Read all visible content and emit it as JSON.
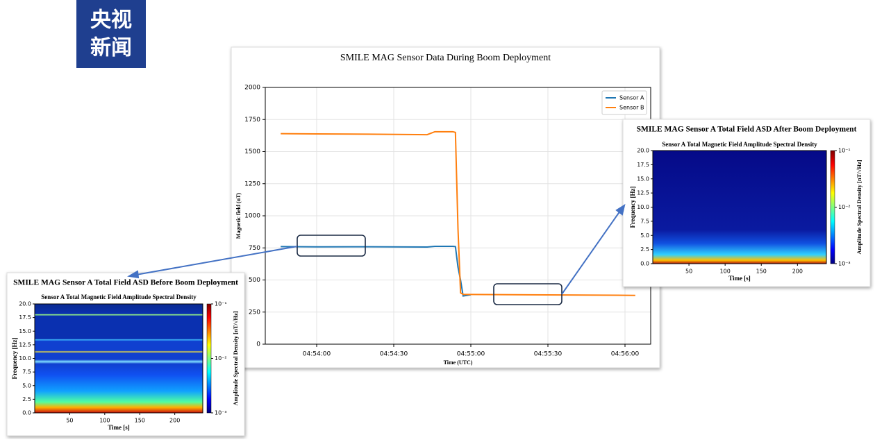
{
  "logo": {
    "lines": [
      "央视",
      "新闻"
    ]
  },
  "chart_data": [
    {
      "type": "line",
      "title": "SMILE MAG Sensor Data During Boom Deployment",
      "xlabel": "Time (UTC)",
      "ylabel": "Magnetic field (nT)",
      "x": [
        "04:53:46",
        "04:54:00",
        "04:54:20",
        "04:54:43",
        "04:54:46",
        "04:54:53",
        "04:54:54",
        "04:54:55",
        "04:54:56",
        "04:54:57",
        "04:55:00",
        "04:55:30",
        "04:56:04"
      ],
      "series": [
        {
          "name": "Sensor A",
          "color": "#1f77b4",
          "values": [
            760,
            758,
            759,
            757,
            762,
            762,
            760,
            600,
            500,
            375,
            385,
            null,
            null
          ]
        },
        {
          "name": "Sensor B",
          "color": "#ff7f0e",
          "values": [
            1640,
            1638,
            1636,
            1632,
            1655,
            1655,
            1650,
            900,
            400,
            388,
            387,
            384,
            380
          ]
        }
      ],
      "xlim": [
        "04:53:40",
        "04:56:10"
      ],
      "xticks": [
        "04:54:00",
        "04:54:30",
        "04:55:00",
        "04:55:30",
        "04:56:00"
      ],
      "ylim": [
        0,
        2000
      ],
      "yticks": [
        0,
        250,
        500,
        750,
        1000,
        1250,
        1500,
        1750,
        2000
      ],
      "grid": true,
      "legend": "upper right"
    },
    {
      "type": "heatmap",
      "title": "SMILE MAG Sensor A Total Field ASD Before Boom Deployment",
      "subtitle": "Sensor A Total Magnetic Field Amplitude Spectral Density",
      "xlabel": "Time [s]",
      "ylabel": "Frequency [Hz]",
      "colormap": "jet",
      "xlim": [
        0,
        240
      ],
      "xticks": [
        50,
        100,
        150,
        200
      ],
      "ylim": [
        0,
        20
      ],
      "yticks": [
        {
          "value": 0,
          "label": "0.0"
        },
        2.5,
        {
          "value": 5,
          "label": "5.0"
        },
        7.5,
        {
          "value": 10,
          "label": "10.0"
        },
        12.5,
        {
          "value": 15,
          "label": "15.0"
        },
        17.5,
        {
          "value": 20,
          "label": "20.0"
        }
      ],
      "colorbar": {
        "label": "Amplitude Spectral Density [nT/√Hz]",
        "log": true,
        "lim": [
          0.001,
          0.1
        ],
        "ticks": [
          {
            "value": 0.1,
            "label": "10⁻¹"
          },
          {
            "value": 0.01,
            "label": "10⁻²"
          },
          {
            "value": 0.001,
            "label": "10⁻³"
          }
        ]
      }
    },
    {
      "type": "heatmap",
      "title": "SMILE MAG Sensor A Total Field ASD After Boom Deployment",
      "subtitle": "Sensor A Total Magnetic Field Amplitude Spectral Density",
      "xlabel": "Time [s]",
      "ylabel": "Frequency [Hz]",
      "colormap": "jet",
      "xlim": [
        0,
        240
      ],
      "xticks": [
        50,
        100,
        150,
        200
      ],
      "ylim": [
        0,
        20
      ],
      "yticks": [
        {
          "value": 0,
          "label": "0.0"
        },
        2.5,
        {
          "value": 5,
          "label": "5.0"
        },
        7.5,
        {
          "value": 10,
          "label": "10.0"
        },
        12.5,
        {
          "value": 15,
          "label": "15.0"
        },
        17.5,
        {
          "value": 20,
          "label": "20.0"
        }
      ],
      "colorbar": {
        "label": "Amplitude Spectral Density [nT/√Hz]",
        "log": true,
        "lim": [
          0.001,
          0.1
        ],
        "ticks": [
          {
            "value": 0.1,
            "label": "10⁻¹"
          },
          {
            "value": 0.01,
            "label": "10⁻²"
          },
          {
            "value": 0.001,
            "label": "10⁻³"
          }
        ]
      }
    }
  ]
}
